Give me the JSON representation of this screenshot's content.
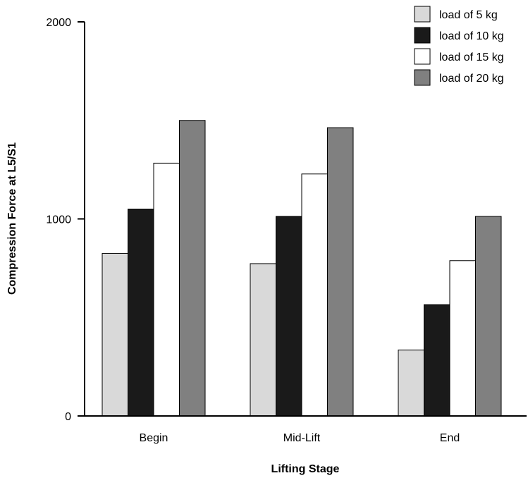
{
  "chart_data": {
    "type": "bar",
    "title": "",
    "xlabel": "Lifting Stage",
    "ylabel": "Compression Force at L5/S1",
    "categories": [
      "Begin",
      "Mid-Lift",
      "End"
    ],
    "ylim": [
      0,
      2000
    ],
    "yticks": [
      "0",
      "1000",
      "2000"
    ],
    "grid": false,
    "legend_position": "top-right",
    "series": [
      {
        "name": "load of 5 kg",
        "color": "#d9d9d9",
        "values": [
          825,
          773,
          335
        ]
      },
      {
        "name": "load of 10 kg",
        "color": "#1a1a1a",
        "values": [
          1050,
          1013,
          565
        ]
      },
      {
        "name": "load of 15 kg",
        "color": "#ffffff",
        "values": [
          1283,
          1228,
          788
        ]
      },
      {
        "name": "load of 20 kg",
        "color": "#808080",
        "values": [
          1500,
          1463,
          1013
        ]
      }
    ]
  }
}
